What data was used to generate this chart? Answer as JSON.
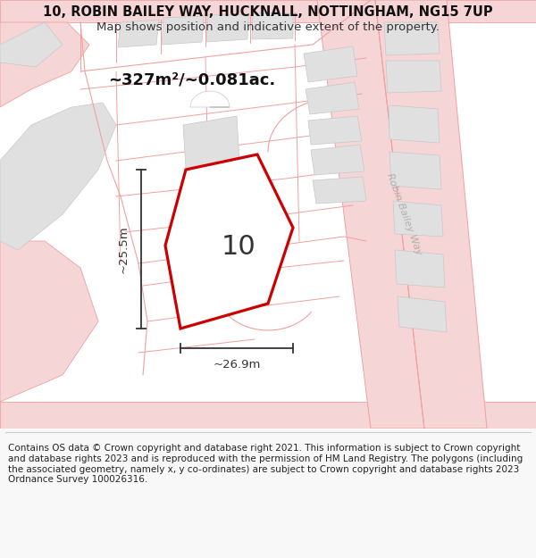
{
  "title": "10, ROBIN BAILEY WAY, HUCKNALL, NOTTINGHAM, NG15 7UP",
  "subtitle": "Map shows position and indicative extent of the property.",
  "footer": "Contains OS data © Crown copyright and database right 2021. This information is subject to Crown copyright and database rights 2023 and is reproduced with the permission of HM Land Registry. The polygons (including the associated geometry, namely x, y co-ordinates) are subject to Crown copyright and database rights 2023 Ordnance Survey 100026316.",
  "area_label": "~327m²/~0.081ac.",
  "width_label": "~26.9m",
  "height_label": "~25.5m",
  "plot_number": "10",
  "title_fontsize": 10.5,
  "subtitle_fontsize": 9.5,
  "footer_fontsize": 7.5,
  "bg_color": "#f8f8f8",
  "map_bg": "#ffffff",
  "plot_fill": "#ffffff",
  "plot_edge": "#cc0000",
  "road_line": "#f0a0a0",
  "road_fill": "#f5d5d5",
  "bld_fill": "#e0e0e0",
  "bld_edge": "#c8c8c8",
  "dim_color": "#333333",
  "label_color": "#111111",
  "road_label_color": "#b0b0b0",
  "footer_bg": "#f0f0f0",
  "divider_color": "#cccccc"
}
